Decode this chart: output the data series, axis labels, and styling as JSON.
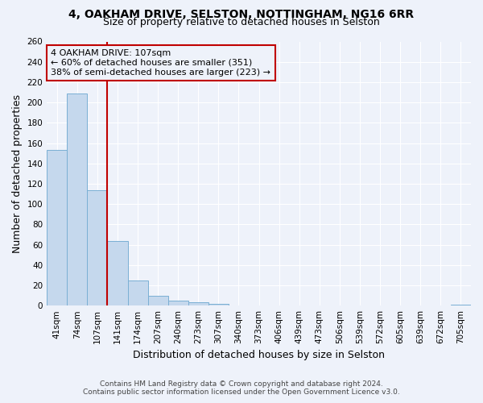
{
  "title1": "4, OAKHAM DRIVE, SELSTON, NOTTINGHAM, NG16 6RR",
  "title2": "Size of property relative to detached houses in Selston",
  "xlabel": "Distribution of detached houses by size in Selston",
  "ylabel": "Number of detached properties",
  "categories": [
    "41sqm",
    "74sqm",
    "107sqm",
    "141sqm",
    "174sqm",
    "207sqm",
    "240sqm",
    "273sqm",
    "307sqm",
    "340sqm",
    "373sqm",
    "406sqm",
    "439sqm",
    "473sqm",
    "506sqm",
    "539sqm",
    "572sqm",
    "605sqm",
    "639sqm",
    "672sqm",
    "705sqm"
  ],
  "values": [
    153,
    209,
    114,
    64,
    25,
    10,
    5,
    3,
    2,
    0,
    0,
    0,
    0,
    0,
    0,
    0,
    0,
    0,
    0,
    0,
    1
  ],
  "bar_color": "#c5d8ed",
  "bar_edge_color": "#7aafd4",
  "highlight_line_index": 2,
  "highlight_color": "#c00000",
  "annotation_line1": "4 OAKHAM DRIVE: 107sqm",
  "annotation_line2": "← 60% of detached houses are smaller (351)",
  "annotation_line3": "38% of semi-detached houses are larger (223) →",
  "ylim": [
    0,
    260
  ],
  "yticks": [
    0,
    20,
    40,
    60,
    80,
    100,
    120,
    140,
    160,
    180,
    200,
    220,
    240,
    260
  ],
  "footnote1": "Contains HM Land Registry data © Crown copyright and database right 2024.",
  "footnote2": "Contains public sector information licensed under the Open Government Licence v3.0.",
  "background_color": "#eef2fa",
  "grid_color": "#ffffff",
  "title1_fontsize": 10,
  "title2_fontsize": 9,
  "axis_label_fontsize": 9,
  "tick_fontsize": 7.5,
  "annotation_fontsize": 8
}
